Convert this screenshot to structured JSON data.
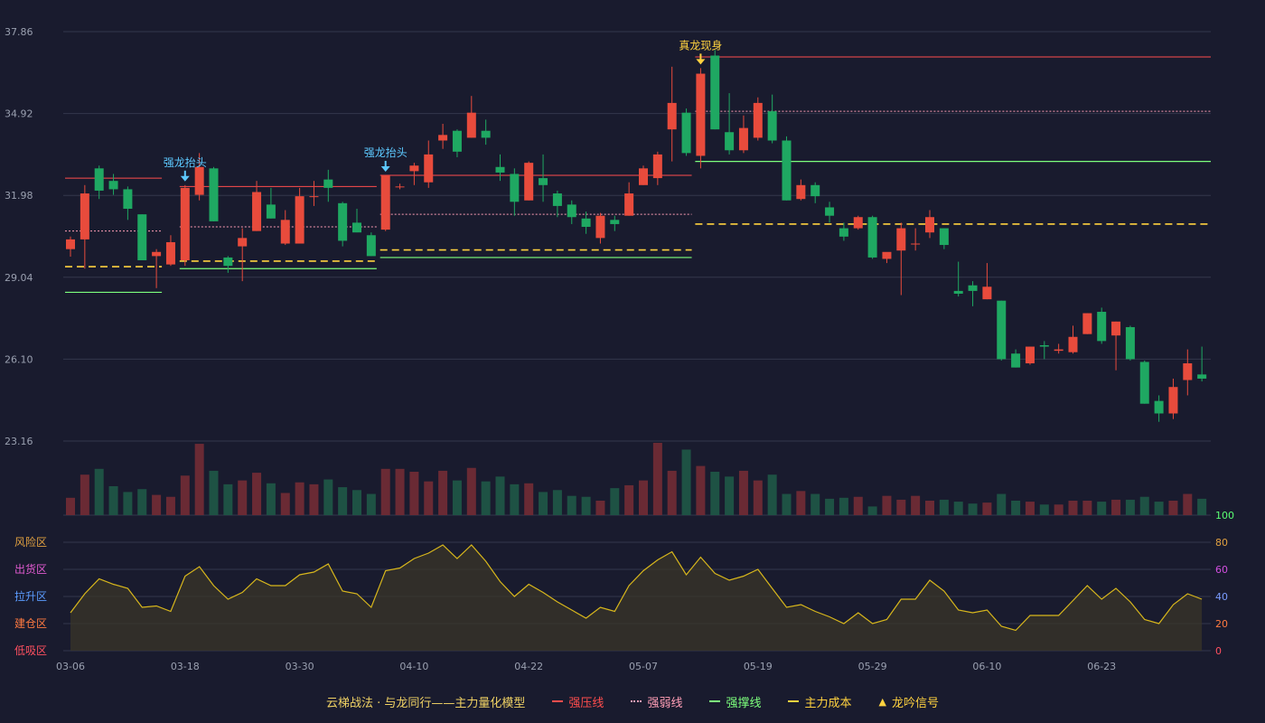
{
  "chart_data": {
    "type": "candlestick",
    "title": "云梯战法 · 与龙同行——主力量化模型",
    "colors": {
      "up": "#e84b3c",
      "down": "#1fa862",
      "vol_up": "#6a2a34",
      "vol_down": "#1e5244",
      "osc": "#d8b71c",
      "bg": "#191b2e",
      "grid": "#34374c",
      "axis": "#9aa0b0",
      "pressure": "#ff4d4d",
      "weak": "#ff9eb6",
      "support": "#7dff7d",
      "cost": "#ffd23f",
      "signal_blue": "#5dc9ff",
      "signal_gold": "#ffd23f"
    },
    "price_axis": {
      "ticks": [
        "37.86",
        "34.92",
        "31.98",
        "29.04",
        "26.10",
        "23.16"
      ],
      "ylim": [
        23.16,
        37.86
      ]
    },
    "x_ticks": [
      {
        "i": 0,
        "label": "03-06"
      },
      {
        "i": 8,
        "label": "03-18"
      },
      {
        "i": 16,
        "label": "03-30"
      },
      {
        "i": 24,
        "label": "04-10"
      },
      {
        "i": 32,
        "label": "04-22"
      },
      {
        "i": 40,
        "label": "05-07"
      },
      {
        "i": 48,
        "label": "05-19"
      },
      {
        "i": 56,
        "label": "05-29"
      },
      {
        "i": 64,
        "label": "06-10"
      },
      {
        "i": 72,
        "label": "06-23"
      }
    ],
    "candles": [
      [
        30.05,
        30.4,
        29.78,
        30.5
      ],
      [
        30.4,
        32.05,
        29.35,
        32.35
      ],
      [
        32.95,
        32.15,
        31.85,
        33.05
      ],
      [
        32.5,
        32.2,
        32.0,
        32.75
      ],
      [
        32.2,
        31.5,
        31.1,
        32.3
      ],
      [
        31.3,
        29.65,
        29.65,
        31.3
      ],
      [
        29.8,
        29.95,
        28.65,
        30.05
      ],
      [
        29.5,
        30.3,
        29.45,
        30.55
      ],
      [
        29.65,
        32.25,
        29.45,
        32.35
      ],
      [
        32.0,
        33.0,
        31.8,
        33.5
      ],
      [
        32.95,
        31.05,
        31.05,
        33.0
      ],
      [
        29.75,
        29.45,
        29.2,
        29.8
      ],
      [
        30.15,
        30.45,
        28.9,
        30.8
      ],
      [
        30.7,
        32.1,
        30.7,
        32.5
      ],
      [
        31.65,
        31.15,
        31.15,
        32.25
      ],
      [
        30.25,
        31.1,
        30.2,
        31.45
      ],
      [
        30.25,
        31.95,
        30.25,
        32.25
      ],
      [
        31.95,
        31.95,
        31.6,
        32.5
      ],
      [
        32.55,
        32.25,
        31.75,
        32.9
      ],
      [
        31.7,
        30.35,
        30.15,
        31.75
      ],
      [
        31.0,
        30.65,
        30.65,
        31.5
      ],
      [
        30.55,
        29.8,
        29.8,
        30.65
      ],
      [
        30.75,
        32.7,
        30.7,
        32.7
      ],
      [
        32.3,
        32.3,
        32.2,
        32.4
      ],
      [
        32.85,
        33.05,
        32.35,
        33.15
      ],
      [
        32.45,
        33.45,
        32.25,
        33.95
      ],
      [
        33.95,
        34.15,
        33.65,
        34.55
      ],
      [
        34.3,
        33.55,
        33.35,
        34.35
      ],
      [
        34.05,
        34.95,
        34.05,
        35.55
      ],
      [
        34.3,
        34.05,
        33.8,
        34.7
      ],
      [
        33.0,
        32.8,
        32.5,
        33.45
      ],
      [
        32.75,
        31.75,
        31.25,
        32.95
      ],
      [
        31.8,
        33.15,
        31.8,
        33.2
      ],
      [
        32.6,
        32.35,
        31.75,
        33.45
      ],
      [
        32.05,
        31.6,
        31.2,
        32.15
      ],
      [
        31.65,
        31.2,
        30.95,
        31.8
      ],
      [
        31.15,
        30.85,
        30.6,
        31.4
      ],
      [
        30.45,
        31.25,
        30.25,
        31.35
      ],
      [
        31.1,
        30.95,
        30.7,
        31.25
      ],
      [
        31.25,
        32.05,
        31.25,
        32.45
      ],
      [
        32.35,
        32.95,
        32.35,
        33.05
      ],
      [
        32.6,
        33.45,
        32.35,
        33.55
      ],
      [
        34.35,
        35.3,
        33.2,
        36.6
      ],
      [
        34.95,
        33.5,
        33.4,
        35.1
      ],
      [
        33.4,
        36.35,
        32.95,
        36.55
      ],
      [
        37.0,
        34.35,
        34.35,
        37.2
      ],
      [
        34.25,
        33.6,
        33.45,
        35.65
      ],
      [
        33.6,
        34.4,
        33.5,
        34.85
      ],
      [
        34.05,
        35.3,
        33.95,
        35.5
      ],
      [
        35.0,
        33.95,
        33.85,
        35.6
      ],
      [
        33.95,
        31.8,
        31.8,
        34.1
      ],
      [
        31.85,
        32.35,
        31.8,
        32.55
      ],
      [
        32.35,
        31.95,
        31.7,
        32.45
      ],
      [
        31.55,
        31.25,
        31.0,
        31.75
      ],
      [
        30.8,
        30.5,
        30.35,
        31.0
      ],
      [
        30.8,
        31.2,
        30.75,
        31.25
      ],
      [
        31.2,
        29.75,
        29.7,
        31.25
      ],
      [
        29.7,
        29.95,
        29.55,
        29.9
      ],
      [
        30.0,
        30.8,
        28.4,
        31.0
      ],
      [
        30.25,
        30.25,
        30.0,
        30.8
      ],
      [
        30.65,
        31.2,
        30.45,
        31.45
      ],
      [
        30.8,
        30.2,
        30.05,
        30.8
      ],
      [
        28.55,
        28.45,
        28.35,
        29.6
      ],
      [
        28.75,
        28.55,
        28.0,
        28.9
      ],
      [
        28.25,
        28.7,
        28.25,
        29.55
      ],
      [
        28.2,
        26.1,
        26.05,
        28.2
      ],
      [
        26.3,
        25.8,
        25.8,
        26.45
      ],
      [
        25.95,
        26.55,
        25.9,
        26.55
      ],
      [
        26.6,
        26.55,
        26.1,
        26.75
      ],
      [
        26.4,
        26.45,
        26.3,
        26.65
      ],
      [
        26.35,
        26.9,
        26.3,
        27.3
      ],
      [
        27.0,
        27.75,
        27.0,
        27.75
      ],
      [
        27.8,
        26.75,
        26.65,
        27.95
      ],
      [
        26.95,
        27.45,
        25.7,
        27.45
      ],
      [
        27.25,
        26.1,
        26.05,
        27.3
      ],
      [
        26.0,
        24.5,
        24.5,
        26.05
      ],
      [
        24.6,
        24.15,
        23.85,
        24.8
      ],
      [
        24.15,
        25.1,
        23.95,
        25.4
      ],
      [
        25.35,
        25.95,
        24.8,
        26.45
      ],
      [
        25.55,
        25.4,
        25.3,
        26.55
      ]
    ],
    "volume": [
      18,
      42,
      48,
      30,
      24,
      27,
      21,
      19,
      41,
      74,
      46,
      32,
      36,
      44,
      33,
      23,
      34,
      32,
      37,
      29,
      26,
      22,
      48,
      48,
      45,
      35,
      46,
      36,
      49,
      35,
      40,
      32,
      33,
      24,
      26,
      20,
      19,
      15,
      28,
      31,
      36,
      75,
      46,
      68,
      51,
      45,
      40,
      46,
      36,
      42,
      22,
      25,
      22,
      17,
      18,
      19,
      9,
      20,
      16,
      20,
      15,
      16,
      14,
      12,
      13,
      22,
      15,
      14,
      11,
      11,
      15,
      15,
      14,
      16,
      16,
      19,
      14,
      15,
      22,
      17
    ],
    "oscillator": {
      "levels": [
        "低吸区",
        "建仓区",
        "拉升区",
        "出货区",
        "风险区"
      ],
      "ticks": [
        "0",
        "20",
        "40",
        "60",
        "80",
        "100"
      ],
      "tick_colors": [
        "#ff5060",
        "#ff7a40",
        "#7a9cff",
        "#d34fe0",
        "#e0a040",
        "#5bff73"
      ],
      "level_colors": [
        "#ff5060",
        "#ff7a40",
        "#5b9cff",
        "#e05ad0",
        "#e0a040"
      ],
      "values": [
        28,
        42,
        53,
        49,
        46,
        32,
        33,
        29,
        55,
        62,
        48,
        38,
        43,
        53,
        48,
        48,
        56,
        58,
        64,
        44,
        42,
        32,
        59,
        61,
        68,
        72,
        78,
        68,
        78,
        66,
        51,
        40,
        49,
        43,
        36,
        30,
        24,
        32,
        29,
        48,
        59,
        67,
        73,
        56,
        69,
        57,
        52,
        55,
        60,
        46,
        32,
        34,
        29,
        25,
        20,
        28,
        20,
        23,
        38,
        38,
        52,
        44,
        30,
        28,
        30,
        18,
        15,
        26,
        26,
        26,
        37,
        48,
        38,
        46,
        36,
        23,
        20,
        34,
        42,
        38
      ]
    },
    "overlays": [
      {
        "kind": "pressure",
        "from": 0,
        "to": 6,
        "y": 32.6
      },
      {
        "kind": "weak",
        "from": 0,
        "to": 6,
        "y": 30.7
      },
      {
        "kind": "cost",
        "from": 0,
        "to": 6,
        "y": 29.42
      },
      {
        "kind": "support",
        "from": 0,
        "to": 6,
        "y": 28.5
      },
      {
        "kind": "pressure",
        "from": 8,
        "to": 21,
        "y": 32.3
      },
      {
        "kind": "weak",
        "from": 8,
        "to": 21,
        "y": 30.85
      },
      {
        "kind": "cost",
        "from": 8,
        "to": 21,
        "y": 29.62
      },
      {
        "kind": "support",
        "from": 8,
        "to": 21,
        "y": 29.35
      },
      {
        "kind": "pressure",
        "from": 22,
        "to": 43,
        "y": 32.7
      },
      {
        "kind": "weak",
        "from": 22,
        "to": 43,
        "y": 31.3
      },
      {
        "kind": "cost",
        "from": 22,
        "to": 43,
        "y": 30.02
      },
      {
        "kind": "support",
        "from": 22,
        "to": 43,
        "y": 29.75
      },
      {
        "kind": "pressure",
        "from": 44,
        "to": 79,
        "y": 36.95
      },
      {
        "kind": "weak",
        "from": 44,
        "to": 79,
        "y": 35.0
      },
      {
        "kind": "support",
        "from": 44,
        "to": 79,
        "y": 33.2
      },
      {
        "kind": "cost",
        "from": 44,
        "to": 79,
        "y": 30.95
      }
    ],
    "signals": [
      {
        "i": 8,
        "label": "强龙抬头",
        "color": "blue"
      },
      {
        "i": 22,
        "label": "强龙抬头",
        "color": "blue"
      },
      {
        "i": 44,
        "label": "真龙现身",
        "color": "gold"
      }
    ]
  },
  "legend": {
    "title": "云梯战法 · 与龙同行——主力量化模型",
    "pressure": "强压线",
    "weak": "强弱线",
    "support": "强撑线",
    "cost": "主力成本",
    "signal": "龙吟信号"
  }
}
